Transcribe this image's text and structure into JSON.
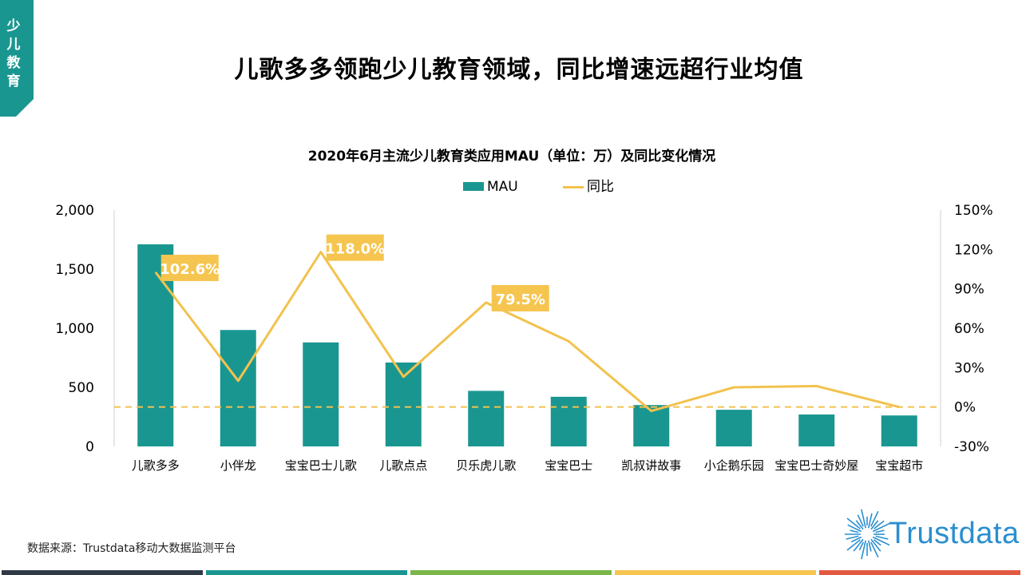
{
  "corner_tag": {
    "lines": [
      "少",
      "儿",
      "教",
      "育"
    ],
    "color": "#1a9690"
  },
  "page_title": "儿歌多多领跑少儿教育领域，同比增速远超行业均值",
  "chart_title": "2020年6月主流少儿教育类应用MAU（单位：万）及同比变化情况",
  "source": "数据来源：Trustdata移动大数据监测平台",
  "logo_text": "Trustdata",
  "colors": {
    "bar": "#1a9690",
    "line": "#f2c24e",
    "callout": "#f5c54f",
    "zero_line": "#f2c24e",
    "footer": [
      "#2f3a46",
      "#1a9690",
      "#7ab648",
      "#f5c54f",
      "#e25a42"
    ]
  },
  "chart_data": {
    "type": "bar",
    "title": "2020年6月主流少儿教育类应用MAU（单位：万）及同比变化情况",
    "categories": [
      "儿歌多多",
      "小伴龙",
      "宝宝巴士儿歌",
      "儿歌点点",
      "贝乐虎儿歌",
      "宝宝巴士",
      "凯叔讲故事",
      "小企鹅乐园",
      "宝宝巴士奇妙屋",
      "宝宝超市"
    ],
    "series": [
      {
        "name": "MAU",
        "type": "bar",
        "axis": "left",
        "values": [
          1710,
          985,
          880,
          710,
          470,
          420,
          350,
          310,
          270,
          262
        ]
      },
      {
        "name": "同比",
        "type": "line",
        "axis": "right",
        "unit": "%",
        "values": [
          102.6,
          20,
          118.0,
          23,
          79.5,
          50,
          -3,
          15,
          16,
          0
        ]
      }
    ],
    "callouts": [
      {
        "index": 0,
        "label": "102.6%"
      },
      {
        "index": 2,
        "label": "118.0%"
      },
      {
        "index": 4,
        "label": "79.5%"
      }
    ],
    "y_left": {
      "range": [
        0,
        2000
      ],
      "ticks": [
        0,
        500,
        1000,
        1500,
        2000
      ],
      "tick_labels": [
        "0",
        "500",
        "1,000",
        "1,500",
        "2,000"
      ]
    },
    "y_right": {
      "range": [
        -30,
        150
      ],
      "ticks": [
        -30,
        0,
        30,
        60,
        90,
        120,
        150
      ],
      "tick_labels": [
        "-30%",
        "0%",
        "30%",
        "60%",
        "90%",
        "120%",
        "150%"
      ]
    },
    "legend": [
      "MAU",
      "同比"
    ],
    "legend_position": "top-center",
    "zero_reference_line": true
  }
}
